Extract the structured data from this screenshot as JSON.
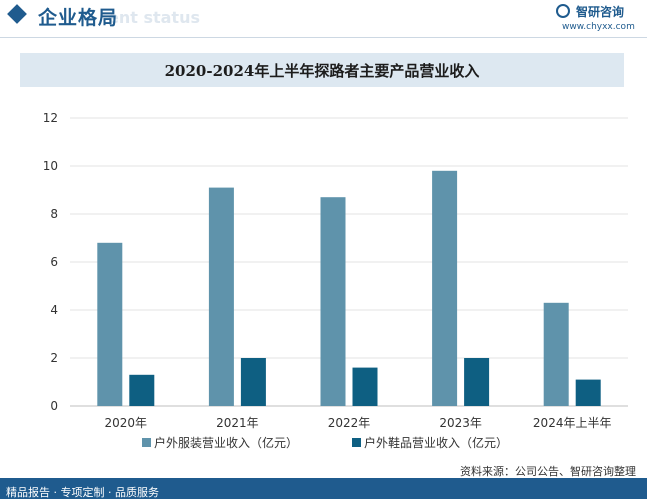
{
  "header": {
    "title": "企业格局",
    "ghost_text": "ent status",
    "brand": "智研咨询",
    "url": "www.chyxx.com"
  },
  "chart_data": {
    "type": "bar",
    "title": "2020-2024年上半年探路者主要产品营业收入",
    "categories": [
      "2020年",
      "2021年",
      "2022年",
      "2023年",
      "2024年上半年"
    ],
    "series": [
      {
        "name": "户外服装营业收入（亿元）",
        "values": [
          6.8,
          9.1,
          8.7,
          9.8,
          4.3
        ],
        "color": "#5f93ab"
      },
      {
        "name": "户外鞋品营业收入（亿元）",
        "values": [
          1.3,
          2.0,
          1.6,
          2.0,
          1.1
        ],
        "color": "#0e5f82"
      }
    ],
    "xlabel": "",
    "ylabel": "",
    "ylim": [
      0,
      12
    ],
    "yticks": [
      0,
      2,
      4,
      6,
      8,
      10,
      12
    ],
    "grid": true,
    "legend": "bottom"
  },
  "source": "资料来源：公司公告、智研咨询整理",
  "footer": "精品报告 · 专项定制 · 品质服务"
}
